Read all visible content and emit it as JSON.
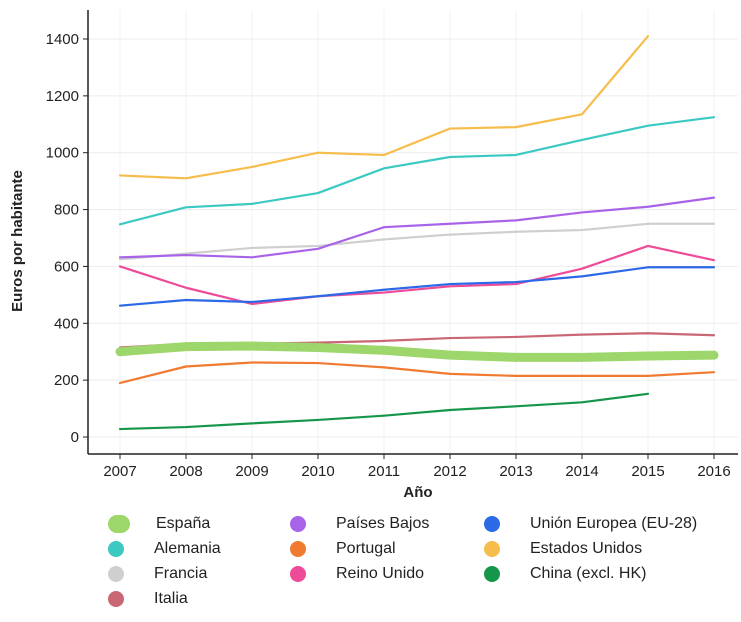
{
  "chart_data": {
    "type": "line",
    "title": "",
    "xlabel": "Año",
    "ylabel": "Euros por habitante",
    "x": [
      2007,
      2008,
      2009,
      2010,
      2011,
      2012,
      2013,
      2014,
      2015,
      2016
    ],
    "ylim": [
      0,
      1500
    ],
    "yticks": [
      0,
      200,
      400,
      600,
      800,
      1000,
      1200,
      1400
    ],
    "grid": true,
    "legend_position": "bottom",
    "series": [
      {
        "name": "España",
        "color": "#9dd66b",
        "emphasis": true,
        "values": [
          300,
          318,
          320,
          315,
          305,
          288,
          280,
          280,
          285,
          288
        ]
      },
      {
        "name": "Alemania",
        "color": "#3cc9c2",
        "values": [
          748,
          808,
          820,
          858,
          945,
          985,
          992,
          1045,
          1095,
          1125
        ]
      },
      {
        "name": "Francia",
        "color": "#cfcfcf",
        "values": [
          625,
          645,
          665,
          672,
          695,
          712,
          722,
          728,
          750,
          750
        ]
      },
      {
        "name": "Italia",
        "color": "#c96775",
        "values": [
          315,
          328,
          328,
          332,
          338,
          348,
          352,
          360,
          365,
          358
        ]
      },
      {
        "name": "Países Bajos",
        "color": "#a764e8",
        "values": [
          632,
          640,
          632,
          662,
          738,
          750,
          762,
          790,
          810,
          842
        ]
      },
      {
        "name": "Portugal",
        "color": "#f07a30",
        "values": [
          190,
          248,
          262,
          260,
          245,
          222,
          215,
          215,
          215,
          228
        ]
      },
      {
        "name": "Reino Unido",
        "color": "#ee4b98",
        "values": [
          600,
          525,
          468,
          495,
          508,
          530,
          538,
          592,
          672,
          622
        ]
      },
      {
        "name": "Unión Europea (EU-28)",
        "color": "#2c69e6",
        "values": [
          462,
          482,
          475,
          495,
          518,
          538,
          545,
          565,
          597,
          597
        ]
      },
      {
        "name": "Estados Unidos",
        "color": "#f7bd4c",
        "values": [
          920,
          910,
          950,
          1000,
          992,
          1085,
          1090,
          1135,
          1410,
          null
        ]
      },
      {
        "name": "China (excl. HK)",
        "color": "#16964a",
        "values": [
          28,
          35,
          48,
          60,
          75,
          95,
          108,
          122,
          152,
          null
        ]
      }
    ]
  }
}
